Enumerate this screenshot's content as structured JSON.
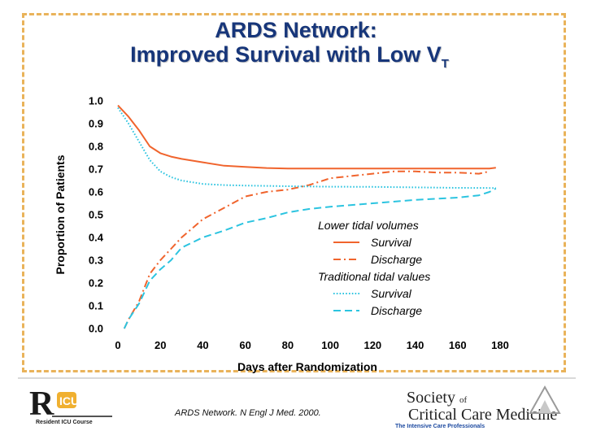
{
  "slide": {
    "title_line1": "ARDS Network:",
    "title_line2": "Improved Survival with Low V",
    "title_subscript": "T",
    "accent_color": "#17367a",
    "border_color": "#e9b35a"
  },
  "chart_data": {
    "type": "line",
    "xlabel": "Days after Randomization",
    "ylabel": "Proportion of Patients",
    "xlim": [
      0,
      180
    ],
    "ylim": [
      0.0,
      1.0
    ],
    "x_ticks": [
      0,
      20,
      40,
      60,
      80,
      100,
      120,
      140,
      160,
      180
    ],
    "y_ticks": [
      0.0,
      0.1,
      0.2,
      0.3,
      0.4,
      0.5,
      0.6,
      0.7,
      0.8,
      0.9,
      1.0
    ],
    "y_tick_labels": [
      "0.0",
      "0.1",
      "0.2",
      "0.3",
      "0.4",
      "0.5",
      "0.6",
      "0.7",
      "0.8",
      "0.9",
      "1.0"
    ],
    "grid": false,
    "legend_position": "center-right",
    "legend_groups": [
      {
        "heading": "Lower tidal volumes",
        "items": [
          0,
          1
        ]
      },
      {
        "heading": "Traditional tidal values",
        "items": [
          2,
          3
        ]
      }
    ],
    "series": [
      {
        "name": "Survival",
        "color": "#f0642d",
        "dash": "solid",
        "points": [
          [
            0,
            0.98
          ],
          [
            5,
            0.93
          ],
          [
            10,
            0.87
          ],
          [
            15,
            0.8
          ],
          [
            20,
            0.77
          ],
          [
            25,
            0.755
          ],
          [
            30,
            0.745
          ],
          [
            40,
            0.73
          ],
          [
            50,
            0.715
          ],
          [
            60,
            0.71
          ],
          [
            70,
            0.705
          ],
          [
            80,
            0.703
          ],
          [
            100,
            0.703
          ],
          [
            120,
            0.703
          ],
          [
            140,
            0.703
          ],
          [
            160,
            0.703
          ],
          [
            175,
            0.703
          ],
          [
            178,
            0.706
          ]
        ]
      },
      {
        "name": "Discharge",
        "color": "#f0642d",
        "dash": "dashdot",
        "points": [
          [
            3,
            0.0
          ],
          [
            5,
            0.04
          ],
          [
            10,
            0.12
          ],
          [
            15,
            0.24
          ],
          [
            20,
            0.3
          ],
          [
            25,
            0.35
          ],
          [
            30,
            0.4
          ],
          [
            35,
            0.44
          ],
          [
            40,
            0.48
          ],
          [
            50,
            0.53
          ],
          [
            60,
            0.58
          ],
          [
            70,
            0.6
          ],
          [
            80,
            0.61
          ],
          [
            90,
            0.63
          ],
          [
            100,
            0.66
          ],
          [
            110,
            0.67
          ],
          [
            120,
            0.68
          ],
          [
            130,
            0.69
          ],
          [
            140,
            0.69
          ],
          [
            150,
            0.685
          ],
          [
            160,
            0.685
          ],
          [
            170,
            0.68
          ],
          [
            175,
            0.69
          ]
        ]
      },
      {
        "name": "Survival",
        "color": "#2cc4e0",
        "dash": "dotted",
        "points": [
          [
            0,
            0.97
          ],
          [
            5,
            0.9
          ],
          [
            10,
            0.82
          ],
          [
            15,
            0.74
          ],
          [
            20,
            0.69
          ],
          [
            25,
            0.665
          ],
          [
            30,
            0.65
          ],
          [
            40,
            0.635
          ],
          [
            50,
            0.63
          ],
          [
            60,
            0.628
          ],
          [
            80,
            0.625
          ],
          [
            100,
            0.623
          ],
          [
            120,
            0.622
          ],
          [
            140,
            0.62
          ],
          [
            160,
            0.618
          ],
          [
            175,
            0.617
          ],
          [
            178,
            0.617
          ]
        ]
      },
      {
        "name": "Discharge",
        "color": "#2cc4e0",
        "dash": "dashed",
        "points": [
          [
            3,
            0.0
          ],
          [
            5,
            0.04
          ],
          [
            10,
            0.11
          ],
          [
            15,
            0.21
          ],
          [
            20,
            0.26
          ],
          [
            25,
            0.3
          ],
          [
            30,
            0.355
          ],
          [
            40,
            0.4
          ],
          [
            50,
            0.43
          ],
          [
            60,
            0.465
          ],
          [
            70,
            0.485
          ],
          [
            80,
            0.51
          ],
          [
            90,
            0.525
          ],
          [
            100,
            0.535
          ],
          [
            120,
            0.55
          ],
          [
            140,
            0.565
          ],
          [
            160,
            0.575
          ],
          [
            170,
            0.585
          ],
          [
            175,
            0.6
          ],
          [
            178,
            0.615
          ]
        ]
      }
    ]
  },
  "footer": {
    "citation": "ARDS Network. N Engl J Med. 2000.",
    "left_logo_text": "Resident ICU Course",
    "sccm_line1": "Society",
    "sccm_of": "of",
    "sccm_line2": "Critical Care Medicine",
    "sccm_tagline": "The Intensive Care Professionals"
  }
}
